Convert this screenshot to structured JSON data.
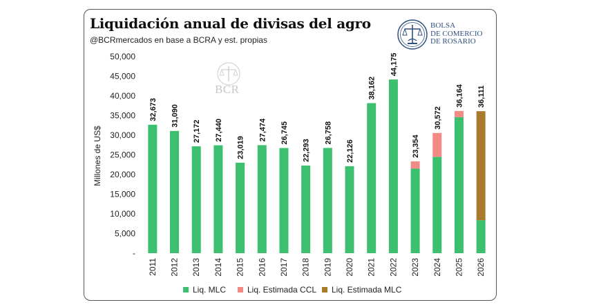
{
  "header": {
    "title": "Liquidación anual de divisas del agro",
    "subtitle": "@BCRmercados en base a BCRA y est. propias"
  },
  "logo": {
    "line1": "BOLSA",
    "line2": "DE COMERCIO",
    "line3": "DE ROSARIO"
  },
  "watermark": {
    "text": "BCR"
  },
  "chart_data": {
    "type": "bar",
    "stacked": true,
    "ylabel": "Millones de US$",
    "ylim": [
      0,
      50000
    ],
    "ytick_step": 5000,
    "ytick_labels": [
      "-",
      "5,000",
      "10,000",
      "15,000",
      "20,000",
      "25,000",
      "30,000",
      "35,000",
      "40,000",
      "45,000",
      "50,000"
    ],
    "grid": false,
    "legend_position": "bottom",
    "categories": [
      "2011",
      "2012",
      "2013",
      "2014",
      "2015",
      "2016",
      "2017",
      "2018",
      "2019",
      "2020",
      "2021",
      "2022",
      "2023",
      "2024",
      "2025",
      "2026"
    ],
    "series": [
      {
        "name": "Liq. MLC",
        "color": "#3cbf6e",
        "values": [
          32673,
          31090,
          27172,
          27440,
          23019,
          27474,
          26745,
          22293,
          26758,
          22126,
          38162,
          44175,
          21500,
          24500,
          34600,
          8400
        ]
      },
      {
        "name": "Liq. Estimada CCL",
        "color": "#f28a85",
        "values": [
          0,
          0,
          0,
          0,
          0,
          0,
          0,
          0,
          0,
          0,
          0,
          0,
          1854,
          6072,
          1564,
          0
        ]
      },
      {
        "name": "Liq. Estimada MLC",
        "color": "#a87a2c",
        "values": [
          0,
          0,
          0,
          0,
          0,
          0,
          0,
          0,
          0,
          0,
          0,
          0,
          0,
          0,
          0,
          27711
        ]
      }
    ],
    "totals": [
      32673,
      31090,
      27172,
      27440,
      23019,
      27474,
      26745,
      22293,
      26758,
      22126,
      38162,
      44175,
      23354,
      30572,
      36164,
      36111
    ],
    "total_labels": [
      "32,673",
      "31,090",
      "27,172",
      "27,440",
      "23,019",
      "27,474",
      "26,745",
      "22,293",
      "26,758",
      "22,126",
      "38,162",
      "44,175",
      "23,354",
      "30,572",
      "36,164",
      "36,111"
    ]
  }
}
